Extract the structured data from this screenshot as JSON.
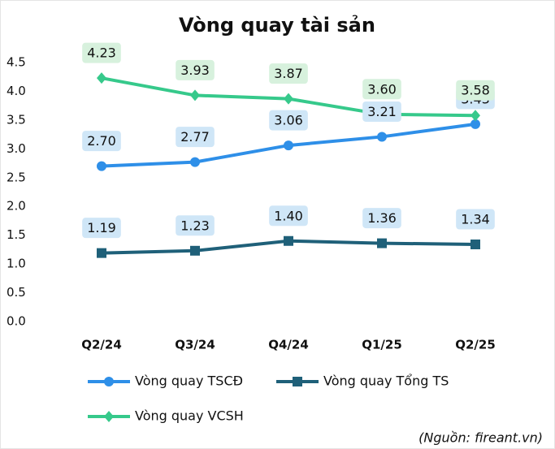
{
  "chart_data": {
    "type": "line",
    "title": "Vòng quay tài sản",
    "categories": [
      "Q2/24",
      "Q3/24",
      "Q4/24",
      "Q1/25",
      "Q2/25"
    ],
    "series": [
      {
        "name": "Vòng quay TSCĐ",
        "color": "#2e8fe8",
        "label_bg": "#cfe6f7",
        "marker": "circle",
        "values": [
          2.7,
          2.77,
          3.06,
          3.21,
          3.43
        ],
        "value_labels": [
          "2.70",
          "2.77",
          "3.06",
          "3.21",
          "3.43"
        ]
      },
      {
        "name": "Vòng quay Tổng TS",
        "color": "#1f6079",
        "label_bg": "#cfe6f7",
        "marker": "square",
        "values": [
          1.19,
          1.23,
          1.4,
          1.36,
          1.34
        ],
        "value_labels": [
          "1.19",
          "1.23",
          "1.40",
          "1.36",
          "1.34"
        ]
      },
      {
        "name": "Vòng quay VCSH",
        "color": "#36c98b",
        "label_bg": "#d7f1dd",
        "marker": "diamond",
        "values": [
          4.23,
          3.93,
          3.87,
          3.6,
          3.58
        ],
        "value_labels": [
          "4.23",
          "3.93",
          "3.87",
          "3.60",
          "3.58"
        ]
      }
    ],
    "ylim": [
      0,
      4.5
    ],
    "yticks": [
      {
        "value": 0,
        "label": "0.0"
      },
      0.5,
      {
        "value": 1,
        "label": "1.0"
      },
      1.5,
      {
        "value": 2,
        "label": "2.0"
      },
      2.5,
      {
        "value": 3,
        "label": "3.0"
      },
      3.5,
      {
        "value": 4,
        "label": "4.0"
      },
      4.5
    ],
    "grid": false,
    "source": "(Nguồn: fireant.vn)"
  }
}
